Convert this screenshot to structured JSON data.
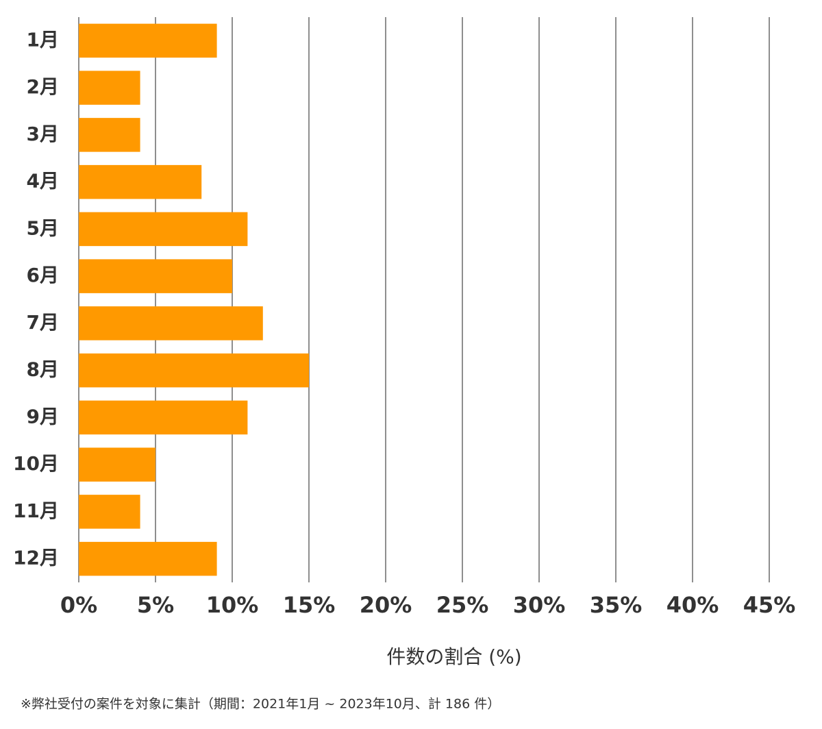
{
  "chart_data": {
    "type": "bar",
    "orientation": "horizontal",
    "categories": [
      "1月",
      "2月",
      "3月",
      "4月",
      "5月",
      "6月",
      "7月",
      "8月",
      "9月",
      "10月",
      "11月",
      "12月"
    ],
    "values": [
      9,
      4,
      4,
      8,
      11,
      10,
      12,
      15,
      11,
      5,
      4,
      9
    ],
    "color": "#ff9900",
    "xlim": [
      0,
      45
    ],
    "xticks": [
      {
        "value": 0,
        "label": "0%"
      },
      {
        "value": 5,
        "label": "5%"
      },
      {
        "value": 10,
        "label": "10%"
      },
      {
        "value": 15,
        "label": "15%"
      },
      {
        "value": 20,
        "label": "20%"
      },
      {
        "value": 25,
        "label": "25%"
      },
      {
        "value": 30,
        "label": "30%"
      },
      {
        "value": 35,
        "label": "35%"
      },
      {
        "value": 40,
        "label": "40%"
      },
      {
        "value": 45,
        "label": "45%"
      }
    ],
    "grid": true,
    "x_label": "件数の割合 (%)",
    "footnote": "※弊社受付の案件を対象に集計（期間：2021年1月 ~ 2023年10月、計 186 件）"
  }
}
